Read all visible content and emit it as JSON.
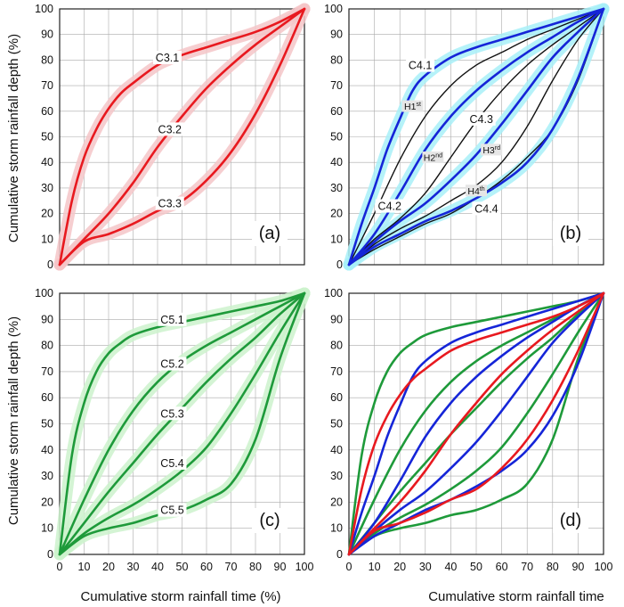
{
  "figure": {
    "ylabel": "Cumulative storm rainfall depth (%)",
    "xlabel_left": "Cumulative storm rainfall time (%)",
    "xlabel_right": "Cumulative storm rainfall time",
    "ticks": [
      "0",
      "10",
      "20",
      "30",
      "40",
      "50",
      "60",
      "70",
      "80",
      "90",
      "100"
    ]
  },
  "chart_data": [
    {
      "panel": "(a)",
      "type": "line",
      "xlim": [
        0,
        100
      ],
      "ylim": [
        0,
        100
      ],
      "grid": true,
      "band_color": "#f5c6c8",
      "series": [
        {
          "name": "C3.1",
          "color": "#e8191f",
          "x": [
            0,
            5,
            10,
            15,
            20,
            25,
            30,
            40,
            50,
            60,
            70,
            80,
            90,
            100
          ],
          "y": [
            0,
            25,
            42,
            53,
            61,
            67,
            71,
            78,
            82,
            85,
            88,
            91,
            95,
            100
          ]
        },
        {
          "name": "C3.2",
          "color": "#e8191f",
          "x": [
            0,
            10,
            20,
            30,
            40,
            50,
            60,
            70,
            80,
            90,
            100
          ],
          "y": [
            0,
            10,
            20,
            32,
            46,
            58,
            69,
            78,
            86,
            93,
            100
          ]
        },
        {
          "name": "C3.3",
          "color": "#e8191f",
          "x": [
            0,
            10,
            20,
            30,
            40,
            50,
            60,
            70,
            80,
            90,
            100
          ],
          "y": [
            0,
            9,
            12,
            16,
            21,
            25,
            33,
            44,
            59,
            78,
            100
          ]
        }
      ]
    },
    {
      "panel": "(b)",
      "type": "line",
      "xlim": [
        0,
        100
      ],
      "ylim": [
        0,
        100
      ],
      "grid": true,
      "band_color": "#a8f0f8",
      "series": [
        {
          "name": "C4.1",
          "color": "#1525d8",
          "x": [
            0,
            5,
            10,
            15,
            20,
            25,
            30,
            40,
            50,
            60,
            70,
            80,
            90,
            100
          ],
          "y": [
            0,
            16,
            30,
            45,
            57,
            68,
            74,
            81,
            85,
            88,
            91,
            94,
            97,
            100
          ]
        },
        {
          "name": "C4.2",
          "color": "#1525d8",
          "x": [
            0,
            10,
            20,
            30,
            40,
            50,
            60,
            70,
            80,
            90,
            100
          ],
          "y": [
            0,
            12,
            28,
            45,
            58,
            68,
            76,
            83,
            89,
            95,
            100
          ]
        },
        {
          "name": "C4.3",
          "color": "#1525d8",
          "x": [
            0,
            10,
            20,
            30,
            40,
            50,
            60,
            70,
            80,
            90,
            100
          ],
          "y": [
            0,
            9,
            17,
            24,
            33,
            43,
            55,
            68,
            81,
            91,
            100
          ]
        },
        {
          "name": "C4.4",
          "color": "#1525d8",
          "x": [
            0,
            10,
            20,
            30,
            40,
            50,
            60,
            70,
            80,
            90,
            100
          ],
          "y": [
            0,
            7,
            12,
            17,
            21,
            26,
            32,
            40,
            53,
            73,
            100
          ]
        },
        {
          "name": "H1st",
          "color": "#111111",
          "x": [
            0,
            10,
            20,
            30,
            40,
            50,
            60,
            70,
            80,
            90,
            100
          ],
          "y": [
            0,
            20,
            41,
            58,
            70,
            78,
            83,
            88,
            92,
            96,
            100
          ]
        },
        {
          "name": "H2nd",
          "color": "#111111",
          "x": [
            0,
            10,
            20,
            30,
            40,
            50,
            60,
            70,
            80,
            90,
            100
          ],
          "y": [
            0,
            10,
            18,
            28,
            42,
            56,
            68,
            78,
            86,
            93,
            100
          ]
        },
        {
          "name": "H3rd",
          "color": "#111111",
          "x": [
            0,
            10,
            20,
            30,
            40,
            50,
            60,
            70,
            80,
            90,
            100
          ],
          "y": [
            0,
            8,
            14,
            19,
            25,
            31,
            40,
            54,
            72,
            88,
            100
          ]
        },
        {
          "name": "H4th",
          "color": "#111111",
          "x": [
            0,
            10,
            20,
            30,
            40,
            50,
            60,
            70,
            80,
            90,
            100
          ],
          "y": [
            0,
            6,
            11,
            16,
            20,
            26,
            33,
            42,
            53,
            72,
            100
          ]
        }
      ]
    },
    {
      "panel": "(c)",
      "type": "line",
      "xlim": [
        0,
        100
      ],
      "ylim": [
        0,
        100
      ],
      "grid": true,
      "band_color": "#ccf2cc",
      "series": [
        {
          "name": "C5.1",
          "color": "#1e9a3a",
          "x": [
            0,
            5,
            10,
            15,
            20,
            25,
            30,
            40,
            50,
            60,
            70,
            80,
            90,
            100
          ],
          "y": [
            0,
            38,
            58,
            70,
            77,
            81,
            84,
            87,
            89,
            91,
            93,
            95,
            97,
            100
          ]
        },
        {
          "name": "C5.2",
          "color": "#1e9a3a",
          "x": [
            0,
            10,
            20,
            30,
            40,
            50,
            60,
            70,
            80,
            90,
            100
          ],
          "y": [
            0,
            21,
            40,
            55,
            66,
            74,
            80,
            85,
            90,
            95,
            100
          ]
        },
        {
          "name": "C5.3",
          "color": "#1e9a3a",
          "x": [
            0,
            10,
            20,
            30,
            40,
            50,
            60,
            70,
            80,
            90,
            100
          ],
          "y": [
            0,
            12,
            24,
            35,
            46,
            56,
            66,
            75,
            83,
            92,
            100
          ]
        },
        {
          "name": "C5.4",
          "color": "#1e9a3a",
          "x": [
            0,
            10,
            20,
            30,
            40,
            50,
            60,
            70,
            80,
            90,
            100
          ],
          "y": [
            0,
            8,
            14,
            19,
            25,
            32,
            41,
            54,
            69,
            85,
            100
          ]
        },
        {
          "name": "C5.5",
          "color": "#1e9a3a",
          "x": [
            0,
            10,
            20,
            30,
            40,
            50,
            60,
            70,
            80,
            90,
            100
          ],
          "y": [
            0,
            7,
            10,
            12,
            15,
            17,
            21,
            27,
            44,
            75,
            100
          ]
        }
      ]
    },
    {
      "panel": "(d)",
      "type": "line",
      "xlim": [
        0,
        100
      ],
      "ylim": [
        0,
        100
      ],
      "grid": true,
      "series": [
        {
          "color": "#1e9a3a",
          "x": [
            0,
            5,
            10,
            15,
            20,
            25,
            30,
            40,
            50,
            60,
            70,
            80,
            90,
            100
          ],
          "y": [
            0,
            38,
            58,
            70,
            77,
            81,
            84,
            87,
            89,
            91,
            93,
            95,
            97,
            100
          ]
        },
        {
          "color": "#1e9a3a",
          "x": [
            0,
            10,
            20,
            30,
            40,
            50,
            60,
            70,
            80,
            90,
            100
          ],
          "y": [
            0,
            21,
            40,
            55,
            66,
            74,
            80,
            85,
            90,
            95,
            100
          ]
        },
        {
          "color": "#1e9a3a",
          "x": [
            0,
            10,
            20,
            30,
            40,
            50,
            60,
            70,
            80,
            90,
            100
          ],
          "y": [
            0,
            12,
            24,
            35,
            46,
            56,
            66,
            75,
            83,
            92,
            100
          ]
        },
        {
          "color": "#1e9a3a",
          "x": [
            0,
            10,
            20,
            30,
            40,
            50,
            60,
            70,
            80,
            90,
            100
          ],
          "y": [
            0,
            8,
            14,
            19,
            25,
            32,
            41,
            54,
            69,
            85,
            100
          ]
        },
        {
          "color": "#1e9a3a",
          "x": [
            0,
            10,
            20,
            30,
            40,
            50,
            60,
            70,
            80,
            90,
            100
          ],
          "y": [
            0,
            7,
            10,
            12,
            15,
            17,
            21,
            27,
            44,
            75,
            100
          ]
        },
        {
          "color": "#1525d8",
          "x": [
            0,
            5,
            10,
            15,
            20,
            25,
            30,
            40,
            50,
            60,
            70,
            80,
            90,
            100
          ],
          "y": [
            0,
            16,
            30,
            45,
            57,
            68,
            74,
            81,
            85,
            88,
            91,
            94,
            97,
            100
          ]
        },
        {
          "color": "#1525d8",
          "x": [
            0,
            10,
            20,
            30,
            40,
            50,
            60,
            70,
            80,
            90,
            100
          ],
          "y": [
            0,
            12,
            28,
            45,
            58,
            68,
            76,
            83,
            89,
            95,
            100
          ]
        },
        {
          "color": "#1525d8",
          "x": [
            0,
            10,
            20,
            30,
            40,
            50,
            60,
            70,
            80,
            90,
            100
          ],
          "y": [
            0,
            9,
            17,
            24,
            33,
            43,
            55,
            68,
            81,
            91,
            100
          ]
        },
        {
          "color": "#1525d8",
          "x": [
            0,
            10,
            20,
            30,
            40,
            50,
            60,
            70,
            80,
            90,
            100
          ],
          "y": [
            0,
            7,
            12,
            17,
            21,
            26,
            32,
            40,
            53,
            73,
            100
          ]
        },
        {
          "color": "#e8191f",
          "x": [
            0,
            5,
            10,
            15,
            20,
            25,
            30,
            40,
            50,
            60,
            70,
            80,
            90,
            100
          ],
          "y": [
            0,
            25,
            42,
            53,
            61,
            67,
            71,
            78,
            82,
            85,
            88,
            91,
            95,
            100
          ]
        },
        {
          "color": "#e8191f",
          "x": [
            0,
            10,
            20,
            30,
            40,
            50,
            60,
            70,
            80,
            90,
            100
          ],
          "y": [
            0,
            10,
            20,
            32,
            46,
            58,
            69,
            78,
            86,
            93,
            100
          ]
        },
        {
          "color": "#e8191f",
          "x": [
            0,
            10,
            20,
            30,
            40,
            50,
            60,
            70,
            80,
            90,
            100
          ],
          "y": [
            0,
            9,
            12,
            16,
            21,
            25,
            33,
            44,
            59,
            78,
            100
          ]
        }
      ]
    }
  ]
}
